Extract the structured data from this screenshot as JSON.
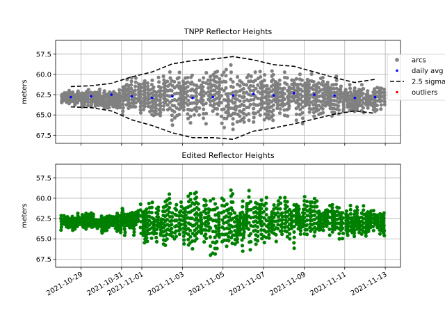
{
  "chart_data": [
    {
      "type": "scatter",
      "title": "TNPP Reflector Heights",
      "xlabel": "",
      "ylabel": "meters",
      "y_inverted": true,
      "ylim": [
        68.5,
        55.8
      ],
      "yticks": [
        "57.5",
        "60.0",
        "62.5",
        "65.0",
        "67.5"
      ],
      "xlim": [
        "2021-10-27T18:00",
        "2021-11-13T18:00"
      ],
      "xtick_labels_shown": false,
      "grid": true,
      "legend": {
        "placement": "right",
        "entries": [
          "arcs",
          "daily avg",
          "2.5 sigma",
          "outliers"
        ]
      },
      "colors": {
        "arcs": "#808080",
        "daily_avg": "#0000ff",
        "sigma": "#000000",
        "outliers": "#ff0000"
      },
      "series": [
        {
          "name": "daily avg",
          "x": [
            "2021-10-28T12:00",
            "2021-10-29T12:00",
            "2021-10-30T12:00",
            "2021-10-31T12:00",
            "2021-11-01T12:00",
            "2021-11-02T12:00",
            "2021-11-03T12:00",
            "2021-11-04T12:00",
            "2021-11-05T12:00",
            "2021-11-06T12:00",
            "2021-11-07T12:00",
            "2021-11-08T12:00",
            "2021-11-09T12:00",
            "2021-11-10T12:00",
            "2021-11-11T12:00",
            "2021-11-12T12:00"
          ],
          "values": [
            62.8,
            62.7,
            62.5,
            62.7,
            62.9,
            62.7,
            62.9,
            62.8,
            62.6,
            62.4,
            62.6,
            62.3,
            62.5,
            62.6,
            62.9,
            62.8
          ]
        },
        {
          "name": "2.5 sigma upper",
          "x": [
            "2021-10-28T12:00",
            "2021-10-29T12:00",
            "2021-10-30T12:00",
            "2021-10-31T12:00",
            "2021-11-01T12:00",
            "2021-11-02T12:00",
            "2021-11-03T12:00",
            "2021-11-04T12:00",
            "2021-11-05T12:00",
            "2021-11-06T12:00",
            "2021-11-07T12:00",
            "2021-11-08T12:00",
            "2021-11-09T12:00",
            "2021-11-10T12:00",
            "2021-11-11T12:00",
            "2021-11-12T12:00"
          ],
          "values": [
            61.5,
            61.4,
            61.1,
            60.3,
            59.7,
            58.7,
            58.3,
            58.1,
            57.8,
            58.2,
            58.8,
            59.0,
            59.7,
            60.4,
            61.0,
            60.6
          ]
        },
        {
          "name": "2.5 sigma lower",
          "x": [
            "2021-10-28T12:00",
            "2021-10-29T12:00",
            "2021-10-30T12:00",
            "2021-10-31T12:00",
            "2021-11-01T12:00",
            "2021-11-02T12:00",
            "2021-11-03T12:00",
            "2021-11-04T12:00",
            "2021-11-05T12:00",
            "2021-11-06T12:00",
            "2021-11-07T12:00",
            "2021-11-08T12:00",
            "2021-11-09T12:00",
            "2021-11-10T12:00",
            "2021-11-11T12:00",
            "2021-11-12T12:00"
          ],
          "values": [
            64.0,
            64.1,
            64.5,
            65.6,
            66.3,
            67.2,
            67.8,
            67.8,
            68.0,
            67.0,
            66.6,
            66.1,
            65.5,
            64.9,
            64.5,
            64.8
          ]
        },
        {
          "name": "arcs",
          "style": "dense scatter per daily cluster",
          "clusters": [
            {
              "x": "2021-10-28T12:00",
              "ymin": 62.0,
              "ymax": 63.8
            },
            {
              "x": "2021-10-29T12:00",
              "ymin": 61.9,
              "ymax": 64.0
            },
            {
              "x": "2021-10-30T12:00",
              "ymin": 61.8,
              "ymax": 64.2
            },
            {
              "x": "2021-10-31T12:00",
              "ymin": 60.8,
              "ymax": 64.6
            },
            {
              "x": "2021-11-01T12:00",
              "ymin": 60.5,
              "ymax": 65.3
            },
            {
              "x": "2021-11-02T12:00",
              "ymin": 60.0,
              "ymax": 65.5
            },
            {
              "x": "2021-11-03T12:00",
              "ymin": 59.7,
              "ymax": 65.8
            },
            {
              "x": "2021-11-04T12:00",
              "ymin": 59.5,
              "ymax": 66.3
            },
            {
              "x": "2021-11-05T12:00",
              "ymin": 59.3,
              "ymax": 66.5
            },
            {
              "x": "2021-11-06T12:00",
              "ymin": 59.5,
              "ymax": 66.0
            },
            {
              "x": "2021-11-07T12:00",
              "ymin": 59.8,
              "ymax": 65.8
            },
            {
              "x": "2021-11-08T12:00",
              "ymin": 60.0,
              "ymax": 65.6
            },
            {
              "x": "2021-11-09T12:00",
              "ymin": 60.3,
              "ymax": 65.2
            },
            {
              "x": "2021-11-10T12:00",
              "ymin": 60.8,
              "ymax": 64.9
            },
            {
              "x": "2021-11-11T12:00",
              "ymin": 61.2,
              "ymax": 64.6
            },
            {
              "x": "2021-11-12T12:00",
              "ymin": 61.5,
              "ymax": 64.3
            }
          ]
        }
      ]
    },
    {
      "type": "scatter",
      "title": "Edited Reflector Heights",
      "xlabel": "",
      "ylabel": "meters",
      "y_inverted": true,
      "ylim": [
        68.5,
        55.8
      ],
      "yticks": [
        "57.5",
        "60.0",
        "62.5",
        "65.0",
        "67.5"
      ],
      "xlim": [
        "2021-10-27T18:00",
        "2021-11-13T18:00"
      ],
      "xticks": [
        "2021-10-29",
        "2021-10-31",
        "2021-11-01",
        "2021-11-03",
        "2021-11-05",
        "2021-11-07",
        "2021-11-09",
        "2021-11-11",
        "2021-11-13"
      ],
      "grid": true,
      "colors": {
        "points": "#008000"
      },
      "series": [
        {
          "name": "",
          "style": "dense scatter per daily cluster",
          "clusters": [
            {
              "x": "2021-10-28T12:00",
              "ymin": 62.0,
              "ymax": 63.8
            },
            {
              "x": "2021-10-29T12:00",
              "ymin": 61.9,
              "ymax": 64.0
            },
            {
              "x": "2021-10-30T12:00",
              "ymin": 61.8,
              "ymax": 64.2
            },
            {
              "x": "2021-10-31T12:00",
              "ymin": 60.8,
              "ymax": 64.6
            },
            {
              "x": "2021-11-01T12:00",
              "ymin": 60.5,
              "ymax": 65.3
            },
            {
              "x": "2021-11-02T12:00",
              "ymin": 60.0,
              "ymax": 65.5
            },
            {
              "x": "2021-11-03T12:00",
              "ymin": 59.7,
              "ymax": 65.8
            },
            {
              "x": "2021-11-04T12:00",
              "ymin": 59.5,
              "ymax": 66.3
            },
            {
              "x": "2021-11-05T12:00",
              "ymin": 59.3,
              "ymax": 66.5
            },
            {
              "x": "2021-11-06T12:00",
              "ymin": 59.5,
              "ymax": 66.0
            },
            {
              "x": "2021-11-07T12:00",
              "ymin": 59.8,
              "ymax": 65.8
            },
            {
              "x": "2021-11-08T12:00",
              "ymin": 60.0,
              "ymax": 65.6
            },
            {
              "x": "2021-11-09T12:00",
              "ymin": 60.3,
              "ymax": 65.2
            },
            {
              "x": "2021-11-10T12:00",
              "ymin": 60.8,
              "ymax": 64.9
            },
            {
              "x": "2021-11-11T12:00",
              "ymin": 61.2,
              "ymax": 64.6
            },
            {
              "x": "2021-11-12T12:00",
              "ymin": 61.5,
              "ymax": 64.3
            }
          ]
        }
      ]
    }
  ]
}
